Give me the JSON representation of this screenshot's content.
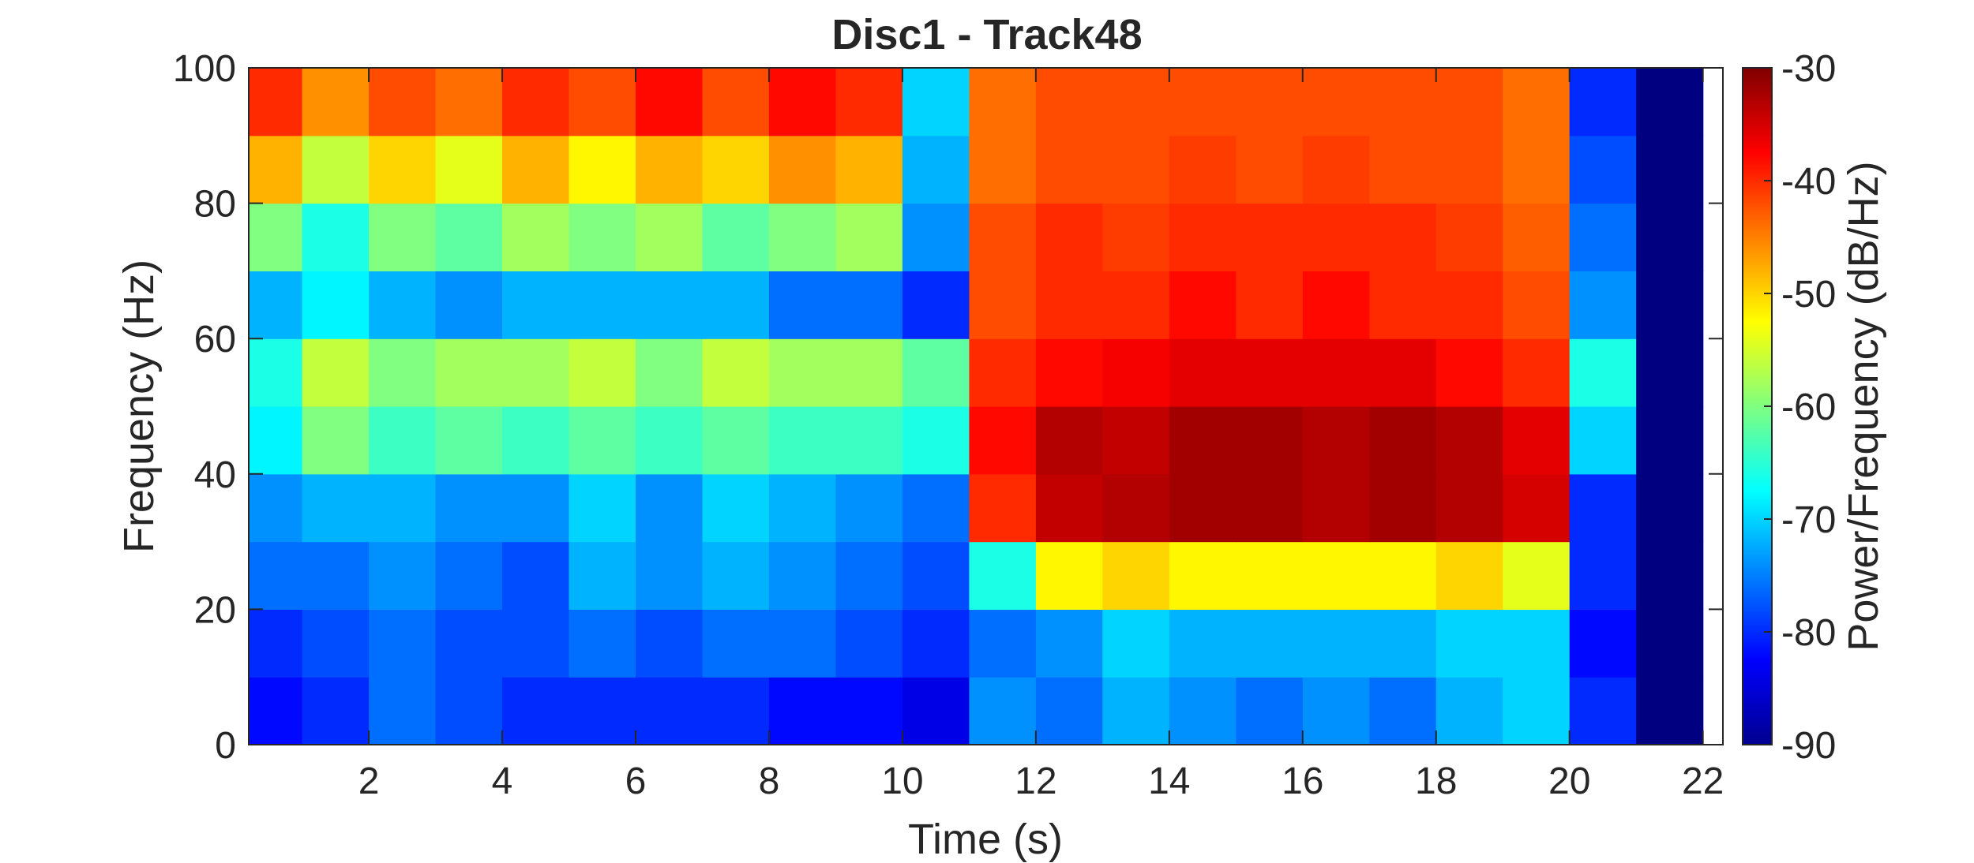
{
  "chart_data": {
    "type": "heatmap",
    "title": "Disc1 - Track48",
    "xlabel": "Time (s)",
    "ylabel": "Frequency (Hz)",
    "colorbar_label": "Power/Frequency (dB/Hz)",
    "colormap": "jet",
    "xlim": [
      0.2,
      22.3
    ],
    "ylim": [
      0,
      100
    ],
    "clim": [
      -90,
      -30
    ],
    "x_ticks": [
      2,
      4,
      6,
      8,
      10,
      12,
      14,
      16,
      18,
      20,
      22
    ],
    "y_ticks": [
      0,
      20,
      40,
      60,
      80,
      100
    ],
    "colorbar_ticks": [
      -90,
      -80,
      -70,
      -60,
      -50,
      -40,
      -30
    ],
    "grid": false,
    "time_s": [
      0.5,
      1.5,
      2.5,
      3.5,
      4.5,
      5.5,
      6.5,
      7.5,
      8.5,
      9.5,
      10.5,
      11.5,
      12.5,
      13.5,
      14.5,
      15.5,
      16.5,
      17.5,
      18.5,
      19.5,
      20.5,
      21.5
    ],
    "frequency_hz": [
      5,
      15,
      25,
      35,
      45,
      55,
      65,
      75,
      85,
      95
    ],
    "power_db": [
      [
        -82,
        -80,
        -76,
        -78,
        -80,
        -80,
        -80,
        -80,
        -82,
        -82,
        -84,
        -74,
        -76,
        -72,
        -74,
        -76,
        -74,
        -76,
        -72,
        -70,
        -80,
        -90
      ],
      [
        -80,
        -78,
        -76,
        -78,
        -78,
        -76,
        -78,
        -76,
        -76,
        -78,
        -80,
        -76,
        -74,
        -70,
        -72,
        -72,
        -72,
        -72,
        -70,
        -70,
        -82,
        -90
      ],
      [
        -76,
        -76,
        -74,
        -76,
        -78,
        -72,
        -74,
        -72,
        -74,
        -76,
        -78,
        -66,
        -52,
        -50,
        -52,
        -52,
        -52,
        -52,
        -50,
        -54,
        -80,
        -90
      ],
      [
        -74,
        -72,
        -72,
        -74,
        -74,
        -70,
        -74,
        -70,
        -72,
        -74,
        -76,
        -40,
        -34,
        -33,
        -32,
        -32,
        -33,
        -32,
        -33,
        -35,
        -80,
        -90
      ],
      [
        -68,
        -60,
        -64,
        -62,
        -64,
        -62,
        -64,
        -62,
        -64,
        -64,
        -66,
        -38,
        -33,
        -34,
        -32,
        -32,
        -33,
        -32,
        -33,
        -36,
        -70,
        -90
      ],
      [
        -66,
        -56,
        -60,
        -58,
        -58,
        -56,
        -60,
        -56,
        -58,
        -58,
        -62,
        -40,
        -38,
        -37,
        -36,
        -36,
        -36,
        -36,
        -38,
        -40,
        -66,
        -90
      ],
      [
        -72,
        -68,
        -72,
        -74,
        -72,
        -72,
        -72,
        -72,
        -76,
        -76,
        -80,
        -42,
        -40,
        -40,
        -38,
        -40,
        -38,
        -40,
        -40,
        -42,
        -74,
        -90
      ],
      [
        -60,
        -66,
        -60,
        -62,
        -58,
        -60,
        -58,
        -62,
        -60,
        -58,
        -74,
        -42,
        -40,
        -41,
        -40,
        -40,
        -40,
        -40,
        -41,
        -43,
        -76,
        -90
      ],
      [
        -48,
        -56,
        -50,
        -54,
        -48,
        -52,
        -48,
        -50,
        -46,
        -48,
        -72,
        -44,
        -42,
        -42,
        -41,
        -42,
        -41,
        -42,
        -42,
        -44,
        -78,
        -90
      ],
      [
        -40,
        -46,
        -42,
        -44,
        -40,
        -42,
        -38,
        -42,
        -38,
        -40,
        -70,
        -44,
        -42,
        -42,
        -42,
        -42,
        -42,
        -42,
        -42,
        -44,
        -80,
        -90
      ]
    ]
  }
}
